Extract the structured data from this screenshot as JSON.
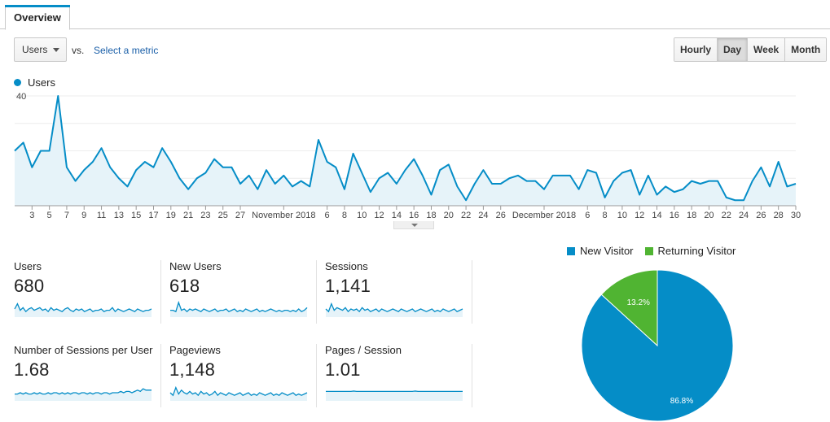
{
  "tabs": {
    "overview_label": "Overview"
  },
  "controls": {
    "metric_select_value": "Users",
    "vs_label": "vs.",
    "select_metric_link": "Select a metric",
    "granularity": [
      "Hourly",
      "Day",
      "Week",
      "Month"
    ],
    "granularity_selected": "Day"
  },
  "colors": {
    "accent": "#058dc7",
    "new_visitor": "#058dc7",
    "returning_visitor": "#50b432",
    "fill": "#e6f3f9"
  },
  "legend": {
    "series_name": "Users"
  },
  "chart_data": [
    {
      "type": "area",
      "series": [
        {
          "name": "Users",
          "values": [
            20,
            23,
            14,
            20,
            20,
            40,
            14,
            9,
            13,
            16,
            21,
            14,
            10,
            7,
            13,
            16,
            14,
            21,
            16,
            10,
            6,
            10,
            12,
            17,
            14,
            14,
            8,
            11,
            6,
            13,
            8,
            11,
            7,
            9,
            7,
            24,
            16,
            14,
            6,
            19,
            12,
            5,
            10,
            12,
            8,
            13,
            17,
            11,
            4,
            13,
            15,
            7,
            2,
            8,
            13,
            8,
            8,
            10,
            11,
            9,
            9,
            6,
            11,
            11,
            11,
            6,
            13,
            12,
            3,
            9,
            12,
            13,
            4,
            11,
            4,
            7,
            5,
            6,
            9,
            8,
            9,
            9,
            3,
            2,
            2,
            9,
            14,
            7,
            16,
            7,
            8
          ]
        }
      ],
      "ylim": [
        0,
        40
      ],
      "y_ticks": [
        20,
        40
      ],
      "x_tick_labels": [
        "3",
        "5",
        "7",
        "9",
        "11",
        "13",
        "15",
        "17",
        "19",
        "21",
        "23",
        "25",
        "27",
        "November 2018",
        "6",
        "8",
        "10",
        "12",
        "14",
        "16",
        "18",
        "20",
        "22",
        "24",
        "26",
        "December 2018",
        "6",
        "8",
        "10",
        "12",
        "14",
        "16",
        "18",
        "20",
        "22",
        "24",
        "26",
        "28",
        "30"
      ],
      "x_tick_days": [
        3,
        5,
        7,
        9,
        11,
        13,
        15,
        17,
        19,
        21,
        23,
        25,
        27,
        32,
        37,
        39,
        41,
        43,
        45,
        47,
        49,
        51,
        53,
        55,
        57,
        62,
        67,
        69,
        71,
        73,
        75,
        77,
        79,
        81,
        83,
        85,
        87,
        89,
        91
      ],
      "grid": true
    },
    {
      "type": "pie",
      "labels": [
        "New Visitor",
        "Returning Visitor"
      ],
      "values": [
        86.8,
        13.2
      ],
      "data_labels": [
        "86.8%",
        "13.2%"
      ],
      "legend_position": "top"
    }
  ],
  "metrics": [
    {
      "label": "Users",
      "value": "680",
      "spark": [
        5,
        9,
        4,
        6,
        3,
        5,
        6,
        4,
        5,
        6,
        4,
        5,
        3,
        6,
        4,
        5,
        4,
        3,
        5,
        6,
        4,
        3,
        5,
        4,
        5,
        3,
        4,
        5,
        3,
        4,
        4,
        5,
        3,
        4,
        4,
        6,
        3,
        5,
        4,
        3,
        4,
        5,
        4,
        3,
        5,
        4,
        3,
        4,
        4,
        5
      ],
      "flat": false
    },
    {
      "label": "New Users",
      "value": "618",
      "spark": [
        4,
        4,
        3,
        10,
        4,
        5,
        3,
        5,
        4,
        5,
        4,
        3,
        5,
        4,
        3,
        4,
        5,
        3,
        4,
        4,
        5,
        3,
        4,
        5,
        3,
        4,
        3,
        5,
        4,
        3,
        4,
        5,
        3,
        4,
        3,
        4,
        5,
        4,
        3,
        4,
        3,
        4,
        4,
        3,
        4,
        3,
        5,
        3,
        4,
        6
      ],
      "flat": false
    },
    {
      "label": "Sessions",
      "value": "1,141",
      "spark": [
        5,
        3,
        9,
        4,
        6,
        5,
        4,
        6,
        3,
        5,
        4,
        5,
        3,
        6,
        4,
        5,
        3,
        4,
        5,
        3,
        5,
        4,
        3,
        4,
        5,
        4,
        3,
        5,
        4,
        3,
        4,
        5,
        3,
        4,
        5,
        4,
        3,
        4,
        5,
        3,
        4,
        3,
        5,
        4,
        3,
        4,
        5,
        3,
        4,
        5
      ],
      "flat": false
    },
    {
      "label": "Number of Sessions per User",
      "value": "1.68",
      "spark": [
        4,
        4,
        5,
        4,
        5,
        4,
        4,
        5,
        4,
        5,
        4,
        4,
        5,
        4,
        5,
        5,
        4,
        5,
        4,
        5,
        4,
        5,
        5,
        4,
        5,
        5,
        4,
        5,
        4,
        5,
        5,
        4,
        5,
        5,
        4,
        5,
        5,
        5,
        6,
        5,
        6,
        6,
        5,
        6,
        7,
        6,
        8,
        7,
        7,
        7
      ],
      "flat": false
    },
    {
      "label": "Pageviews",
      "value": "1,148",
      "spark": [
        5,
        3,
        9,
        4,
        7,
        5,
        4,
        6,
        4,
        5,
        3,
        6,
        4,
        5,
        3,
        4,
        6,
        3,
        5,
        4,
        3,
        5,
        4,
        3,
        4,
        5,
        3,
        4,
        5,
        3,
        4,
        3,
        5,
        4,
        3,
        4,
        5,
        3,
        4,
        3,
        5,
        4,
        3,
        4,
        5,
        3,
        4,
        3,
        4,
        5
      ],
      "flat": false
    },
    {
      "label": "Pages / Session",
      "value": "1.01",
      "spark": [
        6,
        6,
        6,
        6,
        6,
        6,
        6,
        6,
        6,
        6,
        6.3,
        6,
        6,
        6,
        6,
        6,
        6,
        6,
        6,
        6,
        6,
        6,
        6,
        6,
        6,
        6,
        6,
        6,
        6,
        6,
        6,
        6,
        6.3,
        6,
        6,
        6,
        6,
        6,
        6,
        6,
        6,
        6,
        6,
        6,
        6,
        6,
        6,
        6,
        6,
        6
      ],
      "flat": true
    }
  ]
}
